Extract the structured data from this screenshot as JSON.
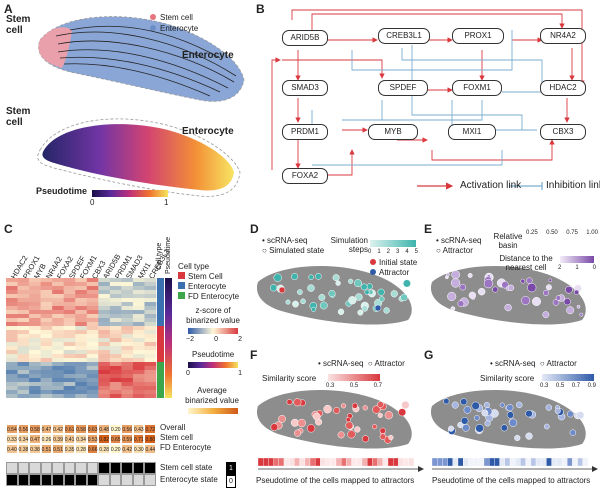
{
  "panels": {
    "A": "A",
    "B": "B",
    "C": "C",
    "D": "D",
    "E": "E",
    "F": "F",
    "G": "G"
  },
  "panel_a": {
    "top_left_label": "Stem\ncell",
    "top_right_label": "Enterocyte",
    "legend": [
      {
        "label": "Stem cell",
        "color": "#e8737f"
      },
      {
        "label": "Enterocyte",
        "color": "#6a8fc7"
      }
    ],
    "bottom_left_label": "Stem\ncell",
    "bottom_right_label": "Enterocyte",
    "pseudotime_title": "Pseudotime",
    "pseudotime_min": "0",
    "pseudotime_max": "1"
  },
  "panel_b": {
    "nodes": [
      "ARID5B",
      "CREB3L1",
      "PROX1",
      "NR4A2",
      "SMAD3",
      "SPDEF",
      "FOXM1",
      "HDAC2",
      "PRDM1",
      "MYB",
      "MXI1",
      "CBX3",
      "FOXA2"
    ],
    "activation_label": "Activation link",
    "inhibition_label": "Inhibition link",
    "activation_color": "#d9393e",
    "inhibition_color": "#7aaed0"
  },
  "panel_c": {
    "genes": [
      "HDAC2",
      "PROX1",
      "MYB",
      "NR4A2",
      "FOXA2",
      "SPDEF",
      "FOXM1",
      "CBX3",
      "ARID5B",
      "PRDM1",
      "SMAD3",
      "MXI1",
      "CREB3L1"
    ],
    "side_labels": [
      "Cell type",
      "Pseudotime"
    ],
    "legend_celltype_title": "Cell type",
    "legend_celltypes": [
      {
        "label": "Stem Cell",
        "color": "#d9393e"
      },
      {
        "label": "Enterocyte",
        "color": "#3a6fb0"
      },
      {
        "label": "FD Enterocyte",
        "color": "#3ea64a"
      }
    ],
    "zscore_title": "z-score of\nbinarized value",
    "zscore_ticks": [
      "−2",
      "0",
      "2"
    ],
    "pseudotime_title": "Pseudotime",
    "pseudotime_ticks": [
      "0",
      "1"
    ],
    "avg_title": "Average\nbinarized value",
    "avg_rows": [
      "Overall",
      "Stem cell",
      "FD Enterocyte"
    ],
    "avg_values": [
      [
        "0.54",
        "0.56",
        "0.58",
        "0.47",
        "0.42",
        "0.61",
        "0.58",
        "0.63",
        "0.48",
        "0.20",
        "0.56",
        "0.43",
        "0.72"
      ],
      [
        "0.33",
        "0.34",
        "0.47",
        "0.26",
        "0.39",
        "0.41",
        "0.34",
        "0.53",
        "0.82",
        "0.65",
        "0.59",
        "0.71",
        "0.80"
      ],
      [
        "0.40",
        "0.38",
        "0.38",
        "0.51",
        "0.51",
        "0.35",
        "0.28",
        "0.66",
        "0.28",
        "0.20",
        "0.42",
        "0.30",
        "0.44"
      ]
    ],
    "state_rows": [
      "Stem cell state",
      "Enterocyte state"
    ],
    "state_values": [
      [
        0,
        0,
        0,
        0,
        0,
        0,
        0,
        0,
        1,
        1,
        1,
        1,
        1
      ],
      [
        1,
        1,
        1,
        1,
        1,
        1,
        1,
        1,
        0,
        0,
        0,
        0,
        0
      ]
    ],
    "state_legend": [
      "1",
      "0"
    ]
  },
  "panel_d": {
    "legend_sc": "scRNA-seq",
    "legend_sim": "Simulated state",
    "steps_title": "Simulation\nsteps",
    "steps_ticks": [
      "0",
      "1",
      "2",
      "3",
      "4",
      "5"
    ],
    "initial_label": "Initial state",
    "attractor_label": "Attractor"
  },
  "panel_e": {
    "legend_sc": "scRNA-seq",
    "legend_attr": "Attractor",
    "basin_title": "Relative\nbasin",
    "basin_ticks": [
      "0.25",
      "0.50",
      "0.75",
      "1.00"
    ],
    "distance_title": "Distance to the\nnearest cell",
    "distance_ticks": [
      "2",
      "1",
      "0"
    ]
  },
  "panel_f": {
    "legend_sc": "scRNA-seq",
    "legend_attr": "Attractor",
    "sim_title": "Similarity score",
    "sim_ticks": [
      "0.3",
      "0.5",
      "0.7"
    ],
    "axis_label": "Pseudotime of the cells mapped to attractors"
  },
  "panel_g": {
    "legend_sc": "scRNA-seq",
    "legend_attr": "Attractor",
    "sim_title": "Similarity score",
    "sim_ticks": [
      "0.3",
      "0.5",
      "0.7",
      "0.9"
    ],
    "axis_label": "Pseudotime of the cells mapped to attractors"
  }
}
